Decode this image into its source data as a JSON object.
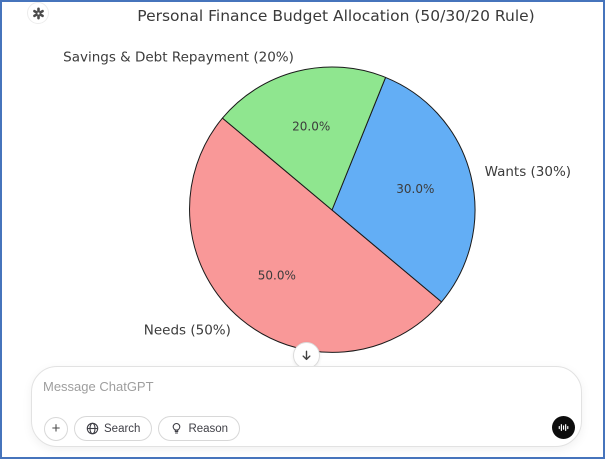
{
  "app": {
    "assistant_avatar": "openai-logo",
    "frame_color": "#4674bc"
  },
  "chart_data": {
    "type": "pie",
    "title": "Personal Finance Budget Allocation (50/30/20 Rule)",
    "start_angle": 140,
    "counterclockwise": true,
    "edge_color": "#1a1a1a",
    "autopct_format": "%.1f%%",
    "slices": [
      {
        "label": "Needs (50%)",
        "value": 50.0,
        "pct_label": "50.0%",
        "color": "#f99898"
      },
      {
        "label": "Wants (30%)",
        "value": 30.0,
        "pct_label": "30.0%",
        "color": "#63aef5"
      },
      {
        "label": "Savings & Debt Repayment (20%)",
        "value": 20.0,
        "pct_label": "20.0%",
        "color": "#8fe68f"
      }
    ]
  },
  "scroll_button": {
    "icon": "arrow-down"
  },
  "composer": {
    "placeholder": "Message ChatGPT",
    "attach_label": "+",
    "search_label": "Search",
    "reason_label": "Reason",
    "voice_icon": "voice-waveform",
    "voice_color": "#0d0d0d"
  }
}
